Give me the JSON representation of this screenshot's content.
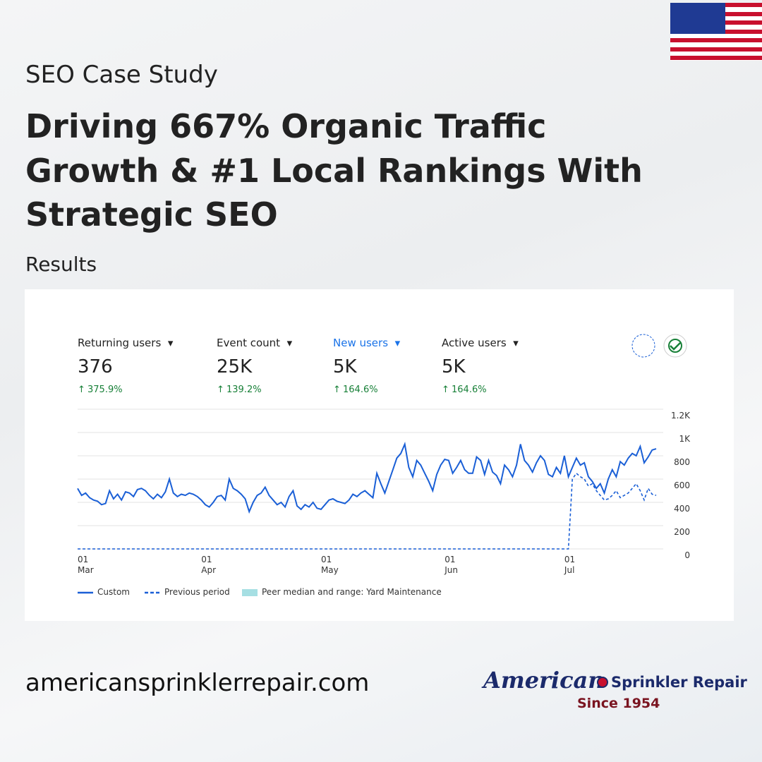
{
  "header": {
    "kicker": "SEO Case Study",
    "title": [
      "Driving 667% Organic Traffic",
      "Growth & #1 Local Rankings With",
      "Strategic SEO"
    ],
    "section": "Results"
  },
  "metrics": [
    {
      "label": "Returning users",
      "value": "376",
      "change": "375.9%"
    },
    {
      "label": "Event count",
      "value": "25K",
      "change": "139.2%"
    },
    {
      "label": "New users",
      "value": "5K",
      "change": "164.6%"
    },
    {
      "label": "Active users",
      "value": "5K",
      "change": "164.6%"
    }
  ],
  "chart_data": {
    "type": "line",
    "categories": [
      "01\nMar",
      null,
      null,
      null,
      null,
      null,
      null,
      null,
      null,
      null,
      null,
      null,
      null,
      null,
      null,
      null,
      null,
      null,
      null,
      null,
      null,
      null,
      null,
      null,
      null,
      null,
      null,
      null,
      null,
      null,
      null,
      "01\nApr",
      null,
      null,
      null,
      null,
      null,
      null,
      null,
      null,
      null,
      null,
      null,
      null,
      null,
      null,
      null,
      null,
      null,
      null,
      null,
      null,
      null,
      null,
      null,
      null,
      null,
      null,
      null,
      null,
      null,
      "01\nMay",
      null,
      null,
      null,
      null,
      null,
      null,
      null,
      null,
      null,
      null,
      null,
      null,
      null,
      null,
      null,
      null,
      null,
      null,
      null,
      null,
      null,
      null,
      null,
      null,
      null,
      null,
      null,
      null,
      null,
      null,
      "01\nJun",
      null,
      null,
      null,
      null,
      null,
      null,
      null,
      null,
      null,
      null,
      null,
      null,
      null,
      null,
      null,
      null,
      null,
      null,
      null,
      null,
      null,
      null,
      null,
      null,
      null,
      null,
      null,
      null,
      null,
      "01\nJul",
      null,
      null,
      null,
      null,
      null,
      null,
      null,
      null,
      null,
      null,
      null,
      null,
      null,
      null,
      null,
      null,
      null,
      null,
      null,
      null,
      null,
      null,
      null
    ],
    "series": [
      {
        "name": "Custom",
        "color": "#1a5fd6",
        "values": [
          520,
          460,
          480,
          440,
          420,
          410,
          380,
          390,
          500,
          430,
          470,
          420,
          490,
          480,
          450,
          510,
          520,
          500,
          460,
          430,
          470,
          440,
          490,
          600,
          480,
          450,
          470,
          460,
          480,
          470,
          450,
          420,
          380,
          360,
          400,
          450,
          460,
          420,
          600,
          520,
          500,
          470,
          430,
          320,
          400,
          460,
          480,
          530,
          460,
          420,
          380,
          400,
          360,
          450,
          500,
          370,
          340,
          380,
          360,
          400,
          350,
          340,
          380,
          420,
          430,
          410,
          400,
          390,
          420,
          470,
          450,
          480,
          500,
          470,
          440,
          650,
          560,
          480,
          580,
          680,
          780,
          820,
          900,
          700,
          620,
          760,
          720,
          650,
          580,
          500,
          640,
          720,
          770,
          760,
          650,
          700,
          760,
          680,
          650,
          650,
          790,
          760,
          640,
          760,
          660,
          630,
          560,
          720,
          680,
          620,
          720,
          900,
          760,
          720,
          660,
          740,
          800,
          760,
          640,
          620,
          700,
          650,
          800,
          620,
          700,
          780,
          720,
          740,
          620,
          580,
          520,
          560,
          480,
          600,
          680,
          620,
          750,
          720,
          780,
          820,
          800,
          880,
          740,
          790,
          850,
          860
        ]
      },
      {
        "name": "Previous period",
        "color": "#1a5fd6",
        "dashed": true,
        "values": [
          0,
          0,
          0,
          0,
          0,
          0,
          0,
          0,
          0,
          0,
          0,
          0,
          0,
          0,
          0,
          0,
          0,
          0,
          0,
          0,
          0,
          0,
          0,
          0,
          0,
          0,
          0,
          0,
          0,
          0,
          0,
          0,
          0,
          0,
          0,
          0,
          0,
          0,
          0,
          0,
          0,
          0,
          0,
          0,
          0,
          0,
          0,
          0,
          0,
          0,
          0,
          0,
          0,
          0,
          0,
          0,
          0,
          0,
          0,
          0,
          0,
          0,
          0,
          0,
          0,
          0,
          0,
          0,
          0,
          0,
          0,
          0,
          0,
          0,
          0,
          0,
          0,
          0,
          0,
          0,
          0,
          0,
          0,
          0,
          0,
          0,
          0,
          0,
          0,
          0,
          0,
          0,
          0,
          0,
          0,
          0,
          0,
          0,
          0,
          0,
          0,
          0,
          0,
          0,
          0,
          0,
          0,
          0,
          0,
          0,
          0,
          0,
          0,
          0,
          0,
          0,
          0,
          0,
          0,
          0,
          0,
          0,
          0,
          0,
          600,
          650,
          620,
          600,
          540,
          560,
          500,
          460,
          420,
          430,
          460,
          500,
          440,
          460,
          480,
          520,
          560,
          500,
          420,
          520,
          470,
          460
        ]
      }
    ],
    "peer_legend": {
      "name": "Peer median and range: Yard Maintenance",
      "color": "#a6dfe3"
    },
    "ylim": [
      0,
      1200
    ],
    "yticks": [
      0,
      200,
      400,
      600,
      800,
      {
        "value": 1000,
        "label": "1K"
      },
      {
        "value": 1200,
        "label": "1.2K"
      }
    ],
    "grid": true
  },
  "footer": {
    "url": "americansprinklerrepair.com",
    "brand": "American",
    "brand2": "Sprinkler Repair",
    "since": "Since 1954"
  }
}
